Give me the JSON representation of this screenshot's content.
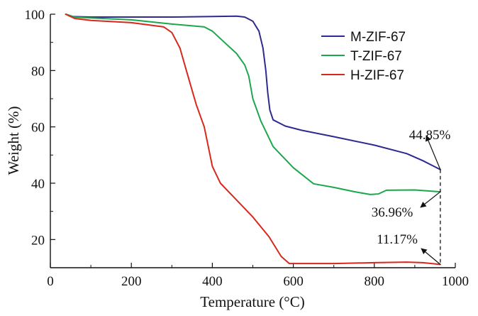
{
  "chart_data": {
    "type": "line",
    "xlabel": "Temperature (°C)",
    "ylabel": "Weight (%)",
    "xlim": [
      0,
      1000
    ],
    "ylim": [
      10,
      100
    ],
    "xticks": [
      0,
      200,
      400,
      600,
      800,
      1000
    ],
    "yticks": [
      20,
      40,
      60,
      80,
      100
    ],
    "xtick_labels": [
      "0",
      "200",
      "400",
      "600",
      "800",
      "1000"
    ],
    "ytick_labels": [
      "20",
      "40",
      "60",
      "80",
      "100"
    ],
    "grid": false,
    "legend_position": "top-right",
    "series": [
      {
        "name": "M-ZIF-67",
        "color": "#2e2a8f",
        "points": [
          [
            38,
            100
          ],
          [
            50,
            99.2
          ],
          [
            100,
            99
          ],
          [
            200,
            99
          ],
          [
            300,
            99
          ],
          [
            400,
            99.2
          ],
          [
            460,
            99.3
          ],
          [
            480,
            99
          ],
          [
            500,
            97.5
          ],
          [
            515,
            94
          ],
          [
            525,
            88
          ],
          [
            532,
            80
          ],
          [
            537,
            72
          ],
          [
            542,
            66
          ],
          [
            550,
            62.5
          ],
          [
            580,
            60.3
          ],
          [
            620,
            58.8
          ],
          [
            700,
            56.5
          ],
          [
            800,
            53.5
          ],
          [
            880,
            50.5
          ],
          [
            920,
            48
          ],
          [
            950,
            45.8
          ],
          [
            963,
            44.85
          ]
        ]
      },
      {
        "name": "T-ZIF-67",
        "color": "#1ba84c",
        "points": [
          [
            38,
            100
          ],
          [
            60,
            99
          ],
          [
            100,
            98.7
          ],
          [
            200,
            98
          ],
          [
            300,
            96.5
          ],
          [
            380,
            95.5
          ],
          [
            400,
            94
          ],
          [
            430,
            90
          ],
          [
            460,
            86
          ],
          [
            480,
            82
          ],
          [
            490,
            78
          ],
          [
            500,
            70
          ],
          [
            520,
            62
          ],
          [
            550,
            53
          ],
          [
            600,
            45.5
          ],
          [
            650,
            39.8
          ],
          [
            700,
            38.5
          ],
          [
            750,
            37
          ],
          [
            790,
            36
          ],
          [
            810,
            36.2
          ],
          [
            830,
            37.5
          ],
          [
            900,
            37.6
          ],
          [
            963,
            36.96
          ]
        ]
      },
      {
        "name": "H-ZIF-67",
        "color": "#d8281d",
        "points": [
          [
            38,
            100
          ],
          [
            60,
            98.5
          ],
          [
            100,
            97.8
          ],
          [
            200,
            97
          ],
          [
            280,
            95.5
          ],
          [
            300,
            93.5
          ],
          [
            320,
            88
          ],
          [
            340,
            78
          ],
          [
            360,
            68
          ],
          [
            380,
            60
          ],
          [
            400,
            46
          ],
          [
            420,
            40
          ],
          [
            460,
            34
          ],
          [
            500,
            28
          ],
          [
            540,
            21
          ],
          [
            570,
            14
          ],
          [
            590,
            11.5
          ],
          [
            700,
            11.5
          ],
          [
            800,
            11.8
          ],
          [
            880,
            12
          ],
          [
            920,
            11.8
          ],
          [
            963,
            11.17
          ]
        ]
      }
    ],
    "annotations": [
      {
        "label": "44.85%",
        "value": 44.85
      },
      {
        "label": "36.96%",
        "value": 36.96
      },
      {
        "label": "11.17%",
        "value": 11.17
      }
    ]
  }
}
